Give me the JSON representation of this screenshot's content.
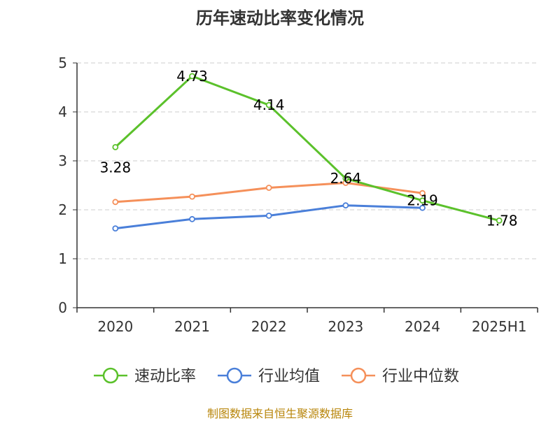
{
  "chart_data": {
    "type": "line",
    "title": "历年速动比率变化情况",
    "categories": [
      "2020",
      "2021",
      "2022",
      "2023",
      "2024",
      "2025H1"
    ],
    "ylim": [
      0,
      5
    ],
    "yticks": [
      "0",
      "1",
      "2",
      "3",
      "4",
      "5"
    ],
    "grid": true,
    "legend_position": "bottom",
    "series": [
      {
        "name": "速动比率",
        "color": "#5bc12b",
        "values": [
          3.28,
          4.73,
          4.14,
          2.64,
          2.19,
          1.78
        ],
        "labels": [
          "3.28",
          "4.73",
          "4.14",
          "2.64",
          "2.19",
          "1.78"
        ]
      },
      {
        "name": "行业均值",
        "color": "#4a7fd9",
        "values": [
          1.62,
          1.81,
          1.88,
          2.09,
          2.04,
          null
        ]
      },
      {
        "name": "行业中位数",
        "color": "#f5905a",
        "values": [
          2.16,
          2.27,
          2.45,
          2.55,
          2.34,
          null
        ]
      }
    ]
  },
  "source_note": "制图数据来自恒生聚源数据库"
}
